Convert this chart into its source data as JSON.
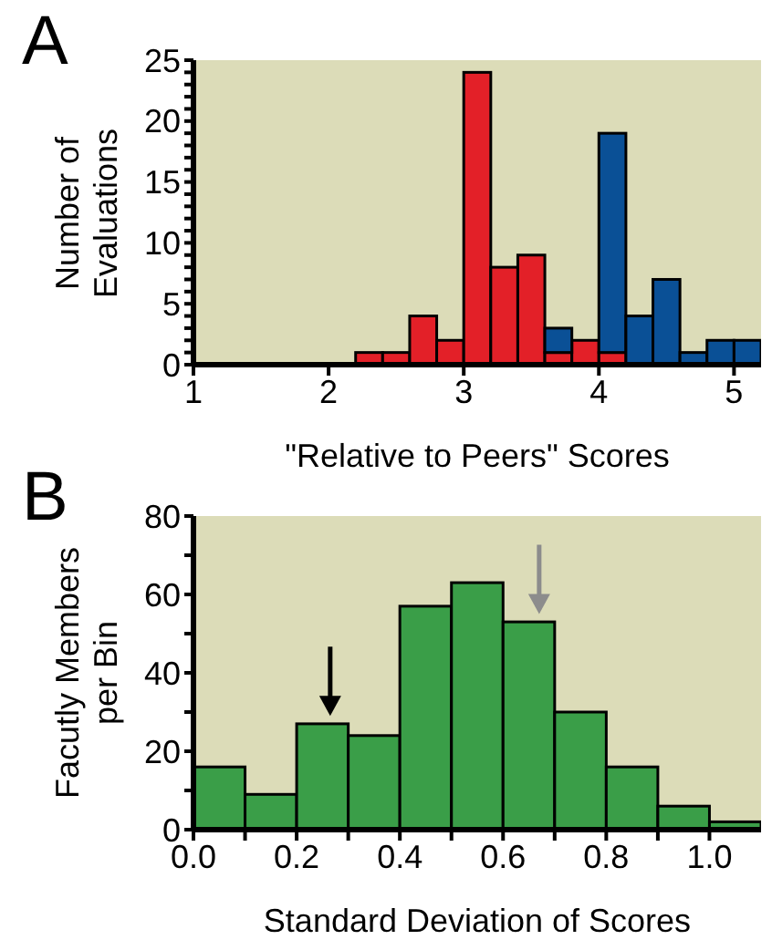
{
  "chart_data": [
    {
      "type": "bar",
      "title": "A",
      "xlabel": "\"Relative to Peers\" Scores",
      "ylabel": "Number of Evaluations",
      "x": [
        2.3,
        2.5,
        2.7,
        2.9,
        3.1,
        3.3,
        3.5,
        3.7,
        3.9,
        4.1,
        4.3,
        4.5,
        4.7,
        4.9,
        5.1
      ],
      "stacked": true,
      "series": [
        {
          "color": "#e32028",
          "values": [
            1,
            1,
            4,
            2,
            24,
            8,
            9,
            1,
            2,
            1,
            0,
            0,
            0,
            0,
            0
          ]
        },
        {
          "color": "#0a5096",
          "values": [
            0,
            0,
            0,
            0,
            0,
            0,
            0,
            2,
            0,
            18,
            4,
            7,
            1,
            2,
            2
          ]
        }
      ],
      "xlim": [
        1,
        5.2
      ],
      "xticks": [
        1,
        2,
        3,
        4,
        5
      ],
      "ylim": [
        0,
        25
      ],
      "yticks": [
        0,
        {
          "value": 1,
          "label": null
        },
        {
          "value": 2,
          "label": null
        },
        {
          "value": 3,
          "label": null
        },
        {
          "value": 4,
          "label": null
        },
        5,
        {
          "value": 6,
          "label": null
        },
        {
          "value": 7,
          "label": null
        },
        {
          "value": 8,
          "label": null
        },
        {
          "value": 9,
          "label": null
        },
        10,
        {
          "value": 11,
          "label": null
        },
        {
          "value": 12,
          "label": null
        },
        {
          "value": 13,
          "label": null
        },
        {
          "value": 14,
          "label": null
        },
        15,
        {
          "value": 16,
          "label": null
        },
        {
          "value": 17,
          "label": null
        },
        {
          "value": 18,
          "label": null
        },
        {
          "value": 19,
          "label": null
        },
        20,
        {
          "value": 21,
          "label": null
        },
        {
          "value": 22,
          "label": null
        },
        {
          "value": 23,
          "label": null
        },
        {
          "value": 24,
          "label": null
        },
        25
      ],
      "grid": false,
      "legend": false
    },
    {
      "type": "histogram",
      "title": "B",
      "xlabel": "Standard Deviation of  Scores",
      "ylabel": "Facutly Members per Bin",
      "bins": [
        0,
        0.1,
        0.2,
        0.3,
        0.4,
        0.5,
        0.6,
        0.7,
        0.8,
        0.9,
        1.0,
        1.1
      ],
      "values": [
        16,
        9,
        27,
        24,
        57,
        63,
        53,
        30,
        16,
        6,
        2
      ],
      "color": "#3a9e48",
      "xlim": [
        0,
        1.1
      ],
      "xticks": [
        {
          "value": 0,
          "label": "0.0"
        },
        {
          "value": 0.1,
          "label": null
        },
        {
          "value": 0.2,
          "label": "0.2"
        },
        {
          "value": 0.3,
          "label": null
        },
        {
          "value": 0.4,
          "label": "0.4"
        },
        {
          "value": 0.5,
          "label": null
        },
        {
          "value": 0.6,
          "label": "0.6"
        },
        {
          "value": 0.7,
          "label": null
        },
        {
          "value": 0.8,
          "label": "0.8"
        },
        {
          "value": 0.9,
          "label": null
        },
        {
          "value": 1.0,
          "label": "1.0"
        }
      ],
      "ylim": [
        0,
        80
      ],
      "yticks": [
        0,
        {
          "value": 10,
          "label": null
        },
        20,
        {
          "value": 30,
          "label": null
        },
        40,
        {
          "value": 50,
          "label": null
        },
        60,
        {
          "value": 70,
          "label": null
        },
        80
      ],
      "grid": false,
      "legend": false
    }
  ]
}
